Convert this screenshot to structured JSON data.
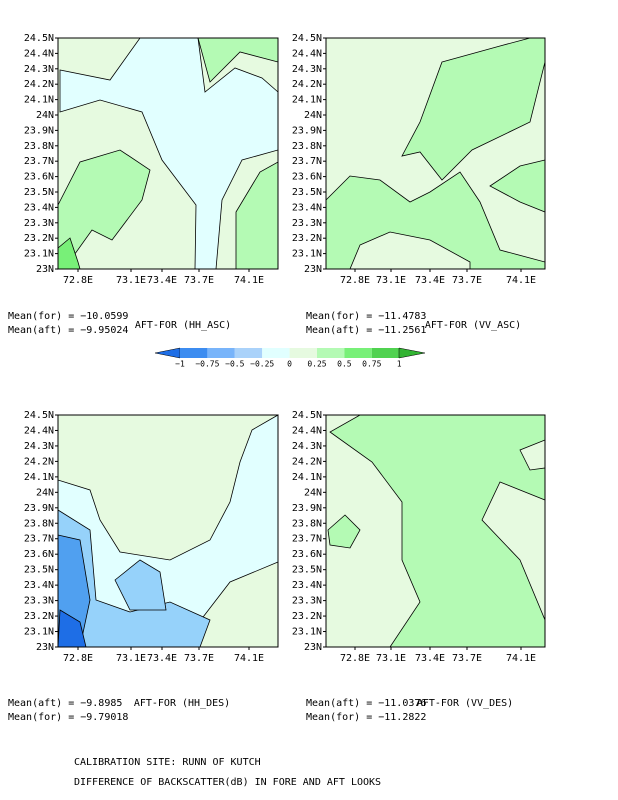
{
  "panels": [
    {
      "title": "AFT-FOR (HH_ASC)",
      "stats": [
        "Mean(for) = −10.0599",
        "Mean(aft) = −9.95024"
      ],
      "yticks": [
        "24.5N",
        "24.4N",
        "24.3N",
        "24.2N",
        "24.1N",
        "24N",
        "23.9N",
        "23.8N",
        "23.7N",
        "23.6N",
        "23.5N",
        "23.4N",
        "23.3N",
        "23.2N",
        "23.1N",
        "23N"
      ],
      "xticks": [
        "72.8E",
        "73.1E",
        "73.4E",
        "73.7E",
        "74.1E"
      ]
    },
    {
      "title": "AFT-FOR (VV_ASC)",
      "stats": [
        "Mean(for) = −11.4783",
        "Mean(aft) = −11.2561"
      ],
      "yticks": [
        "24.5N",
        "24.4N",
        "24.3N",
        "24.2N",
        "24.1N",
        "24N",
        "23.9N",
        "23.8N",
        "23.7N",
        "23.6N",
        "23.5N",
        "23.4N",
        "23.3N",
        "23.2N",
        "23.1N",
        "23N"
      ],
      "xticks": [
        "72.8E",
        "73.1E",
        "73.4E",
        "73.7E",
        "74.1E"
      ]
    },
    {
      "title": "AFT-FOR (HH_DES)",
      "stats": [
        "Mean(aft) = −9.8985",
        "Mean(for) = −9.79018"
      ],
      "yticks": [
        "24.5N",
        "24.4N",
        "24.3N",
        "24.2N",
        "24.1N",
        "24N",
        "23.9N",
        "23.8N",
        "23.7N",
        "23.6N",
        "23.5N",
        "23.4N",
        "23.3N",
        "23.2N",
        "23.1N",
        "23N"
      ],
      "xticks": [
        "72.8E",
        "73.1E",
        "73.4E",
        "73.7E",
        "74.1E"
      ]
    },
    {
      "title": "AFT-FOR (VV_DES)",
      "stats": [
        "Mean(aft) = −11.0376",
        "Mean(for) = −11.2822"
      ],
      "yticks": [
        "24.5N",
        "24.4N",
        "24.3N",
        "24.2N",
        "24.1N",
        "24N",
        "23.9N",
        "23.8N",
        "23.7N",
        "23.6N",
        "23.5N",
        "23.4N",
        "23.3N",
        "23.2N",
        "23.1N",
        "23N"
      ],
      "xticks": [
        "72.8E",
        "73.1E",
        "73.4E",
        "73.7E",
        "74.1E"
      ]
    }
  ],
  "colorbar": {
    "labels": [
      "−1",
      "−0.75",
      "−0.5",
      "−0.25",
      "0",
      "0.25",
      "0.5",
      "0.75",
      "1"
    ]
  },
  "footer": [
    "CALIBRATION SITE: RUNN OF KUTCH",
    "DIFFERENCE OF BACKSCATTER(dB) IN FORE AND AFT LOOKS"
  ]
}
